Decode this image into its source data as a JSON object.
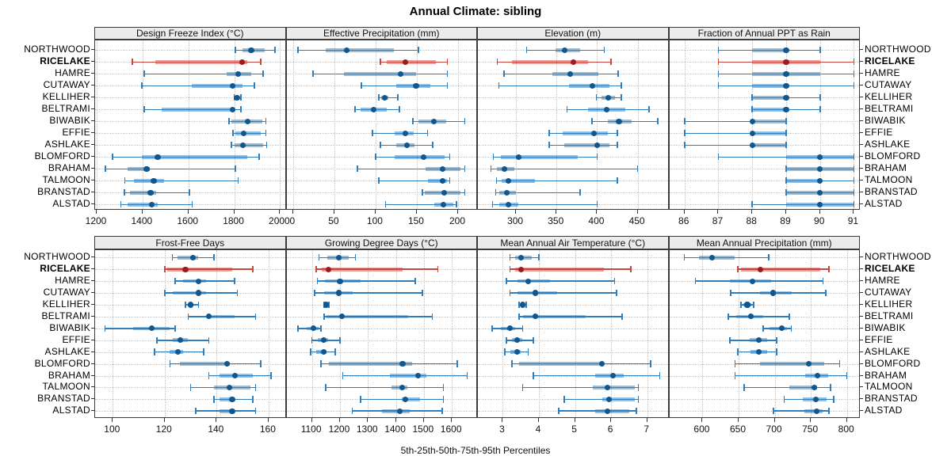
{
  "title": "Annual Climate: sibling",
  "caption": "5th-25th-50th-75th-95th Percentiles",
  "highlight_station": "RICELAKE",
  "colors": {
    "series_line": "#2f7dba",
    "series_bar": "rgba(47,125,186,0.5)",
    "series_dot": "#10578f",
    "highlight_line": "#c9463f",
    "highlight_bar": "rgba(201,70,63,0.5)",
    "highlight_dot": "#9e1b23",
    "strip_bg": "#ececec",
    "panel_border": "#3c3c3c",
    "gridline": "#c4c4c4"
  },
  "chart_data": {
    "type": "percentile-dotplot",
    "percentiles": [
      "5th",
      "25th",
      "50th",
      "75th",
      "95th"
    ],
    "legend_note": "thin line = 5th-95th, thick bar = 25th-75th, dot = 50th",
    "grid": "dotted horizontal and vertical gridlines",
    "stations": [
      "NORTHWOOD",
      "RICELAKE",
      "HAMRE",
      "CUTAWAY",
      "KELLIHER",
      "BELTRAMI",
      "BIWABIK",
      "EFFIE",
      "ASHLAKE",
      "BLOMFORD",
      "BRAHAM",
      "TALMOON",
      "BRANSTAD",
      "ALSTAD"
    ],
    "panels": [
      {
        "slug": "design-freeze-index",
        "grid": 0,
        "col": 0,
        "title": "Design Freeze Index (°C)",
        "xdomain": [
          1193,
          2028
        ],
        "xticks": [
          1200,
          1400,
          1600,
          1800,
          2000
        ],
        "series": {
          "NORTHWOOD": [
            1805,
            1835,
            1874,
            1932,
            1977
          ],
          "RICELAKE": [
            1356,
            1455,
            1835,
            1858,
            1915
          ],
          "HAMRE": [
            1408,
            1766,
            1817,
            1875,
            1927
          ],
          "CUTAWAY": [
            1397,
            1616,
            1794,
            1835,
            1887
          ],
          "KELLIHER": [
            1800,
            1805,
            1812,
            1822,
            1829
          ],
          "BELTRAMI": [
            1408,
            1483,
            1794,
            1802,
            1829
          ],
          "BIWABIK": [
            1777,
            1788,
            1858,
            1921,
            1938
          ],
          "EFFIE": [
            1794,
            1806,
            1840,
            1915,
            1938
          ],
          "ASHLAKE": [
            1788,
            1800,
            1837,
            1927,
            1942
          ],
          "BLOMFORD": [
            1270,
            1397,
            1466,
            1858,
            1909
          ],
          "BRAHAM": [
            1238,
            1334,
            1418,
            1430,
            1805
          ],
          "TALMOON": [
            1322,
            1362,
            1449,
            1495,
            1817
          ],
          "BRANSTAD": [
            1320,
            1345,
            1435,
            1460,
            1604
          ],
          "ALSTAD": [
            1305,
            1334,
            1441,
            1466,
            1616
          ]
        }
      },
      {
        "slug": "effective-precipitation",
        "grid": 0,
        "col": 1,
        "title": "Effective Precipitation (mm)",
        "xdomain": [
          -8,
          224
        ],
        "xticks": [
          0,
          50,
          100,
          150,
          200
        ],
        "series": {
          "NORTHWOOD": [
            6,
            40,
            65,
            122,
            152
          ],
          "RICELAKE": [
            106,
            114,
            136,
            173,
            187
          ],
          "HAMRE": [
            24,
            62,
            130,
            149,
            187
          ],
          "CUTAWAY": [
            83,
            125,
            149,
            166,
            187
          ],
          "KELLIHER": [
            104,
            107,
            111,
            115,
            127
          ],
          "BELTRAMI": [
            75,
            82,
            98,
            114,
            129
          ],
          "BIWABIK": [
            145,
            152,
            171,
            186,
            208
          ],
          "EFFIE": [
            96,
            123,
            136,
            146,
            163
          ],
          "ASHLAKE": [
            106,
            125,
            138,
            147,
            169
          ],
          "BLOMFORD": [
            100,
            123,
            158,
            184,
            190
          ],
          "BRAHAM": [
            78,
            161,
            181,
            203,
            208
          ],
          "TALMOON": [
            104,
            163,
            181,
            187,
            190
          ],
          "BRANSTAD": [
            157,
            160,
            183,
            203,
            208
          ],
          "ALSTAD": [
            112,
            171,
            182,
            194,
            198
          ]
        }
      },
      {
        "slug": "elevation",
        "grid": 0,
        "col": 2,
        "title": "Elevation (m)",
        "xdomain": [
          253,
          489
        ],
        "xticks": [
          300,
          350,
          400,
          450
        ],
        "series": {
          "NORTHWOOD": [
            313,
            349,
            360,
            379,
            409
          ],
          "RICELAKE": [
            277,
            295,
            371,
            389,
            417
          ],
          "HAMRE": [
            285,
            345,
            367,
            402,
            426
          ],
          "CUTAWAY": [
            279,
            365,
            394,
            415,
            430
          ],
          "KELLIHER": [
            399,
            405,
            414,
            422,
            430
          ],
          "BELTRAMI": [
            363,
            389,
            412,
            435,
            464
          ],
          "BIWABIK": [
            394,
            413,
            427,
            443,
            475
          ],
          "EFFIE": [
            341,
            358,
            396,
            413,
            425
          ],
          "ASHLAKE": [
            341,
            360,
            400,
            415,
            425
          ],
          "BLOMFORD": [
            272,
            281,
            303,
            376,
            400
          ],
          "BRAHAM": [
            269,
            276,
            286,
            298,
            450
          ],
          "TALMOON": [
            276,
            282,
            291,
            323,
            425
          ],
          "BRANSTAD": [
            275,
            279,
            289,
            300,
            379
          ],
          "ALSTAD": [
            271,
            279,
            291,
            303,
            400
          ]
        }
      },
      {
        "slug": "fraction-ppt-rain",
        "grid": 0,
        "col": 3,
        "title": "Fraction of Annual PPT as Rain",
        "xdomain": [
          85.55,
          91.2
        ],
        "xticks": [
          86,
          87,
          88,
          89,
          90,
          91
        ],
        "series": {
          "NORTHWOOD": [
            87,
            88,
            89,
            89,
            90
          ],
          "RICELAKE": [
            87,
            88,
            89,
            90,
            91
          ],
          "HAMRE": [
            87,
            88,
            89,
            90,
            91
          ],
          "CUTAWAY": [
            87,
            88,
            89,
            89,
            91
          ],
          "KELLIHER": [
            88,
            88,
            89,
            89,
            90
          ],
          "BELTRAMI": [
            88,
            88,
            89,
            89,
            90
          ],
          "BIWABIK": [
            86,
            88,
            88,
            89,
            89
          ],
          "EFFIE": [
            86,
            88,
            88,
            89,
            89
          ],
          "ASHLAKE": [
            86,
            88,
            88,
            89,
            89
          ],
          "BLOMFORD": [
            87,
            89,
            90,
            91,
            91
          ],
          "BRAHAM": [
            89,
            89,
            90,
            91,
            91
          ],
          "TALMOON": [
            89,
            89,
            90,
            90,
            91
          ],
          "BRANSTAD": [
            89,
            89,
            90,
            91,
            91
          ],
          "ALSTAD": [
            88,
            89,
            90,
            91,
            91
          ]
        }
      },
      {
        "slug": "frost-free-days",
        "grid": 1,
        "col": 0,
        "title": "Frost-Free Days",
        "xdomain": [
          93.2,
          166.9
        ],
        "xticks": [
          100,
          120,
          140,
          160
        ],
        "series": {
          "NORTHWOOD": [
            123,
            125,
            131,
            133,
            139
          ],
          "RICELAKE": [
            120,
            121,
            128,
            146,
            154
          ],
          "HAMRE": [
            124,
            127,
            133,
            136,
            147
          ],
          "CUTAWAY": [
            120,
            123,
            133,
            136,
            148
          ],
          "KELLIHER": [
            128,
            129,
            130,
            131,
            133
          ],
          "BELTRAMI": [
            129,
            136,
            137,
            147,
            155
          ],
          "BIWABIK": [
            97,
            108,
            115,
            122,
            124
          ],
          "EFFIE": [
            117,
            123,
            126,
            129,
            137
          ],
          "ASHLAKE": [
            116,
            122,
            125,
            127,
            135
          ],
          "BLOMFORD": [
            122,
            126,
            144,
            145,
            157
          ],
          "BRAHAM": [
            137,
            141,
            147,
            154,
            161
          ],
          "TALMOON": [
            130,
            139,
            145,
            153,
            155
          ],
          "BRANSTAD": [
            139,
            141,
            146,
            147,
            154
          ],
          "ALSTAD": [
            132,
            141,
            146,
            147,
            155
          ]
        }
      },
      {
        "slug": "growing-degree-days",
        "grid": 1,
        "col": 1,
        "title": "Growing Degree Days (°C)",
        "xdomain": [
          1009,
          1693
        ],
        "xticks": [
          1100,
          1200,
          1300,
          1400,
          1500,
          1600
        ],
        "series": {
          "NORTHWOOD": [
            1125,
            1155,
            1195,
            1230,
            1255
          ],
          "RICELAKE": [
            1115,
            1135,
            1160,
            1425,
            1550
          ],
          "HAMRE": [
            1120,
            1145,
            1200,
            1275,
            1470
          ],
          "CUTAWAY": [
            1110,
            1143,
            1196,
            1246,
            1495
          ],
          "KELLIHER": [
            1143,
            1147,
            1150,
            1157,
            1161
          ],
          "BELTRAMI": [
            1143,
            1152,
            1208,
            1445,
            1530
          ],
          "BIWABIK": [
            1050,
            1080,
            1105,
            1125,
            1132
          ],
          "EFFIE": [
            1100,
            1120,
            1143,
            1157,
            1200
          ],
          "ASHLAKE": [
            1095,
            1114,
            1141,
            1152,
            1183
          ],
          "BLOMFORD": [
            1133,
            1161,
            1424,
            1459,
            1620
          ],
          "BRAHAM": [
            1210,
            1380,
            1480,
            1510,
            1655
          ],
          "TALMOON": [
            1150,
            1385,
            1423,
            1440,
            1570
          ],
          "BRANSTAD": [
            1273,
            1420,
            1435,
            1487,
            1570
          ],
          "ALSTAD": [
            1244,
            1350,
            1413,
            1450,
            1565
          ]
        }
      },
      {
        "slug": "mean-annual-air-temperature",
        "grid": 1,
        "col": 2,
        "title": "Mean Annual Air Temperature (°C)",
        "xdomain": [
          2.31,
          7.61
        ],
        "xticks": [
          3,
          4,
          5,
          6,
          7
        ],
        "series": {
          "NORTHWOOD": [
            3.2,
            3.35,
            3.5,
            3.8,
            4.0
          ],
          "RICELAKE": [
            3.2,
            3.35,
            3.5,
            5.8,
            6.55
          ],
          "HAMRE": [
            3.1,
            3.4,
            3.7,
            4.3,
            6.1
          ],
          "CUTAWAY": [
            3.2,
            3.4,
            3.9,
            4.5,
            6.15
          ],
          "KELLIHER": [
            3.45,
            3.5,
            3.55,
            3.6,
            3.65
          ],
          "BELTRAMI": [
            3.45,
            3.55,
            3.9,
            5.3,
            6.3
          ],
          "BIWABIK": [
            2.7,
            2.95,
            3.2,
            3.35,
            3.55
          ],
          "EFFIE": [
            3.1,
            3.25,
            3.4,
            3.55,
            3.85
          ],
          "ASHLAKE": [
            3.05,
            3.2,
            3.4,
            3.5,
            3.7
          ],
          "BLOMFORD": [
            3.25,
            3.45,
            5.75,
            5.8,
            7.1
          ],
          "BRAHAM": [
            3.85,
            5.55,
            6.05,
            6.35,
            7.35
          ],
          "TALMOON": [
            3.55,
            5.5,
            5.9,
            6.65,
            6.75
          ],
          "BRANSTAD": [
            4.7,
            5.75,
            5.95,
            6.65,
            6.75
          ],
          "ALSTAD": [
            4.55,
            5.55,
            5.9,
            6.5,
            6.7
          ]
        }
      },
      {
        "slug": "mean-annual-precipitation",
        "grid": 1,
        "col": 3,
        "title": "Mean Annual Precipitation (mm)",
        "xdomain": [
          554,
          819
        ],
        "xticks": [
          600,
          650,
          700,
          750,
          800
        ],
        "series": {
          "NORTHWOOD": [
            575,
            595,
            613,
            645,
            692
          ],
          "RICELAKE": [
            649,
            653,
            680,
            763,
            775
          ],
          "HAMRE": [
            590,
            638,
            669,
            695,
            767
          ],
          "CUTAWAY": [
            639,
            680,
            698,
            724,
            771
          ],
          "KELLIHER": [
            653,
            657,
            662,
            668,
            671
          ],
          "BELTRAMI": [
            636,
            647,
            667,
            684,
            720
          ],
          "BIWABIK": [
            684,
            693,
            710,
            717,
            723
          ],
          "EFFIE": [
            638,
            665,
            678,
            689,
            703
          ],
          "ASHLAKE": [
            649,
            667,
            678,
            690,
            703
          ],
          "BLOMFORD": [
            645,
            680,
            747,
            768,
            790
          ],
          "BRAHAM": [
            645,
            742,
            759,
            774,
            800
          ],
          "TALMOON": [
            658,
            720,
            755,
            759,
            777
          ],
          "BRANSTAD": [
            713,
            739,
            757,
            772,
            782
          ],
          "ALSTAD": [
            698,
            741,
            758,
            766,
            775
          ]
        }
      }
    ]
  }
}
